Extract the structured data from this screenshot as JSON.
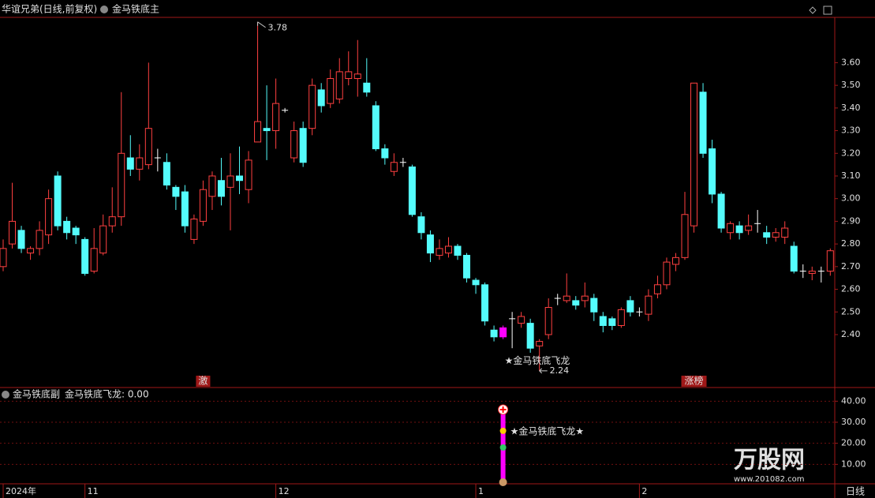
{
  "chart_data": {
    "type": "candlestick",
    "title": "华谊兄弟(日线,前复权)",
    "indicator_title": "金马铁底主",
    "categories": [
      "2024年",
      null,
      null,
      null,
      null,
      null,
      null,
      null,
      null,
      "11",
      null,
      null,
      null,
      null,
      null,
      null,
      null,
      null,
      null,
      null,
      null,
      null,
      null,
      null,
      null,
      null,
      null,
      null,
      null,
      null,
      "12",
      null,
      null,
      null,
      null,
      null,
      null,
      null,
      null,
      null,
      null,
      null,
      null,
      null,
      null,
      null,
      null,
      null,
      null,
      null,
      null,
      null,
      "1",
      null,
      null,
      null,
      null,
      null,
      null,
      null,
      null,
      null,
      null,
      null,
      null,
      null,
      null,
      null,
      null,
      null,
      "2",
      null,
      null,
      null,
      null,
      null,
      null,
      null,
      null,
      null,
      null,
      null,
      null,
      null,
      null,
      null,
      null,
      null,
      null,
      null,
      null,
      null
    ],
    "marker_labels": [
      null,
      null,
      null,
      null,
      null,
      null,
      null,
      null,
      null,
      null,
      null,
      null,
      null,
      null,
      null,
      null,
      null,
      null,
      null,
      null,
      null,
      null,
      "激",
      null,
      null,
      null,
      null,
      null,
      null,
      null,
      null,
      null,
      null,
      null,
      null,
      null,
      null,
      null,
      null,
      null,
      null,
      null,
      null,
      null,
      null,
      null,
      null,
      null,
      null,
      null,
      null,
      null,
      null,
      null,
      null,
      null,
      null,
      null,
      null,
      null,
      null,
      null,
      null,
      null,
      null,
      null,
      null,
      null,
      null,
      null,
      null,
      null,
      null,
      null,
      null,
      null,
      "涨榜",
      null,
      null,
      null,
      null,
      null,
      null,
      null,
      null,
      null,
      null,
      null,
      null,
      null,
      null,
      null
    ],
    "open": [
      2.7,
      2.8,
      2.86,
      2.76,
      2.78,
      2.84,
      3.1,
      2.9,
      2.87,
      2.82,
      2.68,
      2.76,
      2.88,
      2.92,
      3.18,
      3.13,
      3.15,
      3.18,
      3.16,
      3.05,
      3.03,
      2.82,
      2.9,
      3.01,
      3.08,
      3.05,
      3.1,
      3.04,
      3.25,
      3.31,
      3.3,
      3.39,
      3.18,
      3.31,
      3.31,
      3.48,
      3.42,
      3.44,
      3.53,
      3.53,
      3.51,
      3.41,
      3.22,
      3.12,
      3.16,
      3.14,
      2.92,
      2.84,
      2.75,
      2.76,
      2.79,
      2.75,
      2.64,
      2.62,
      2.42,
      2.43,
      2.47,
      2.45,
      2.45,
      2.35,
      2.4,
      2.56,
      2.55,
      2.55,
      2.55,
      2.56,
      2.48,
      2.47,
      2.44,
      2.55,
      2.5,
      2.49,
      2.58,
      2.62,
      2.71,
      2.74,
      2.88,
      3.47,
      3.22,
      3.02,
      2.85,
      2.88,
      2.86,
      2.89,
      2.85,
      2.83,
      2.83,
      2.79,
      2.68,
      2.67,
      2.68,
      2.68
    ],
    "high": [
      2.82,
      3.07,
      2.88,
      2.79,
      2.9,
      3.04,
      3.12,
      2.92,
      2.88,
      2.83,
      2.87,
      2.93,
      3.05,
      3.47,
      3.28,
      3.24,
      3.6,
      3.22,
      3.2,
      3.06,
      3.06,
      2.93,
      3.08,
      3.12,
      3.18,
      3.2,
      3.23,
      3.21,
      3.78,
      3.5,
      3.53,
      3.4,
      3.34,
      3.34,
      3.53,
      3.51,
      3.57,
      3.62,
      3.65,
      3.7,
      3.62,
      3.43,
      3.24,
      3.2,
      3.18,
      3.15,
      2.94,
      2.86,
      2.82,
      2.83,
      2.8,
      2.76,
      2.65,
      2.63,
      2.44,
      2.44,
      2.5,
      2.5,
      2.47,
      2.38,
      2.56,
      2.58,
      2.67,
      2.57,
      2.63,
      2.58,
      2.5,
      2.48,
      2.52,
      2.57,
      2.52,
      2.6,
      2.66,
      2.74,
      2.76,
      3.03,
      3.51,
      3.51,
      3.26,
      3.03,
      2.9,
      2.9,
      2.93,
      2.95,
      2.88,
      2.87,
      2.9,
      2.81,
      2.71,
      2.7,
      2.7,
      2.78
    ],
    "low": [
      2.68,
      2.78,
      2.76,
      2.73,
      2.75,
      2.8,
      2.86,
      2.82,
      2.8,
      2.66,
      2.67,
      2.75,
      2.85,
      2.88,
      3.1,
      3.08,
      3.13,
      3.12,
      3.04,
      2.95,
      2.85,
      2.8,
      2.88,
      2.95,
      2.97,
      2.86,
      3.02,
      2.98,
      3.25,
      3.17,
      3.22,
      3.38,
      3.16,
      3.14,
      3.28,
      3.38,
      3.4,
      3.42,
      3.5,
      3.45,
      3.45,
      3.21,
      3.15,
      3.1,
      3.14,
      2.92,
      2.82,
      2.72,
      2.73,
      2.74,
      2.73,
      2.63,
      2.58,
      2.44,
      2.37,
      2.38,
      2.34,
      2.43,
      2.32,
      2.24,
      2.38,
      2.53,
      2.54,
      2.51,
      2.52,
      2.46,
      2.41,
      2.42,
      2.43,
      2.48,
      2.48,
      2.46,
      2.56,
      2.6,
      2.68,
      2.73,
      2.85,
      3.18,
      2.98,
      2.85,
      2.82,
      2.82,
      2.84,
      2.85,
      2.8,
      2.81,
      2.8,
      2.67,
      2.65,
      2.64,
      2.63,
      2.66
    ],
    "close": [
      2.78,
      2.9,
      2.78,
      2.78,
      2.86,
      3.0,
      2.88,
      2.85,
      2.84,
      2.67,
      2.78,
      2.88,
      2.92,
      3.2,
      3.13,
      3.18,
      3.31,
      3.18,
      3.06,
      3.01,
      2.88,
      2.91,
      3.04,
      3.1,
      3.01,
      3.1,
      3.08,
      3.17,
      3.34,
      3.3,
      3.42,
      3.39,
      3.3,
      3.16,
      3.5,
      3.41,
      3.53,
      3.56,
      3.56,
      3.55,
      3.47,
      3.22,
      3.18,
      3.16,
      3.16,
      2.93,
      2.85,
      2.76,
      2.78,
      2.79,
      2.75,
      2.65,
      2.62,
      2.46,
      2.39,
      2.39,
      2.47,
      2.48,
      2.34,
      2.37,
      2.52,
      2.56,
      2.57,
      2.53,
      2.57,
      2.5,
      2.44,
      2.44,
      2.51,
      2.5,
      2.5,
      2.57,
      2.62,
      2.72,
      2.74,
      2.93,
      3.51,
      3.2,
      3.02,
      2.87,
      2.89,
      2.85,
      2.88,
      2.89,
      2.83,
      2.85,
      2.87,
      2.68,
      2.68,
      2.68,
      2.68,
      2.77
    ],
    "up_color": "#ff4040",
    "down_color": "#54fcfc",
    "flat_color": "#ffffff",
    "signal_color": "#ff00ff",
    "max_label": "3.78",
    "min_label": "2.24",
    "signal_label": "★金马铁底飞龙",
    "ylim": [
      2.17,
      3.8
    ],
    "yticks": [
      {
        "value": 2.4,
        "label": "2.40"
      },
      {
        "value": 2.5,
        "label": "2.50"
      },
      {
        "value": 2.6,
        "label": "2.60"
      },
      {
        "value": 2.7,
        "label": "2.70"
      },
      {
        "value": 2.8,
        "label": "2.80"
      },
      {
        "value": 2.9,
        "label": "2.90"
      },
      {
        "value": 3.0,
        "label": "3.00"
      },
      {
        "value": 3.1,
        "label": "3.10"
      },
      {
        "value": 3.2,
        "label": "3.20"
      },
      {
        "value": 3.3,
        "label": "3.30"
      },
      {
        "value": 3.4,
        "label": "3.40"
      },
      {
        "value": 3.5,
        "label": "3.50"
      },
      {
        "value": 3.6,
        "label": "3.60"
      }
    ],
    "period_label": "日线",
    "sub": {
      "title": "金马铁底副",
      "readout": "金马铁底飞龙: 0.00",
      "signal_label": "★金马铁底飞龙★",
      "color": "#ff00ff",
      "values": [
        0,
        0,
        0,
        0,
        0,
        0,
        0,
        0,
        0,
        0,
        0,
        0,
        0,
        0,
        0,
        0,
        0,
        0,
        0,
        0,
        0,
        0,
        0,
        0,
        0,
        0,
        0,
        0,
        0,
        0,
        0,
        0,
        0,
        0,
        0,
        0,
        0,
        0,
        0,
        0,
        0,
        0,
        0,
        0,
        0,
        0,
        0,
        0,
        0,
        0,
        0,
        0,
        0,
        0,
        0,
        36,
        0,
        0,
        0,
        0,
        0,
        0,
        0,
        0,
        0,
        0,
        0,
        0,
        0,
        0,
        0,
        0,
        0,
        0,
        0,
        0,
        0,
        0,
        0,
        0,
        0,
        0,
        0,
        0,
        0,
        0,
        0,
        0,
        0,
        0,
        0,
        0
      ],
      "ylim": [
        0,
        45
      ],
      "yticks": [
        {
          "value": 10,
          "label": "10.00"
        },
        {
          "value": 20,
          "label": "20.00"
        },
        {
          "value": 30,
          "label": "30.00"
        },
        {
          "value": 40,
          "label": "40.00"
        }
      ],
      "grid": true
    },
    "watermark": {
      "brand": "万股网",
      "url": "www.201082.com"
    }
  }
}
